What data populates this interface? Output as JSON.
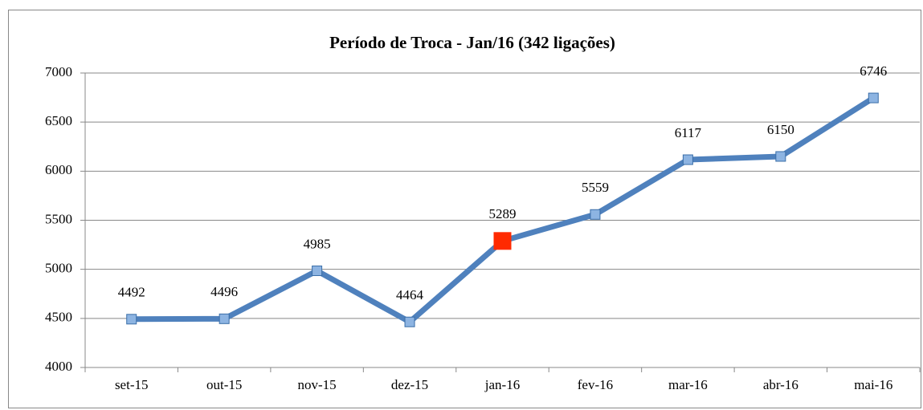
{
  "chart_data": {
    "type": "line",
    "title": "Período de Troca - Jan/16 (342 ligações)",
    "categories": [
      "set-15",
      "out-15",
      "nov-15",
      "dez-15",
      "jan-16",
      "fev-16",
      "mar-16",
      "abr-16",
      "mai-16"
    ],
    "values": [
      4492,
      4496,
      4985,
      4464,
      5289,
      5559,
      6117,
      6150,
      6746
    ],
    "color": "#4f81bd",
    "point_colors": [
      "#8db4e2",
      "#8db4e2",
      "#8db4e2",
      "#8db4e2",
      "#ff2a00",
      "#8db4e2",
      "#8db4e2",
      "#8db4e2",
      "#8db4e2"
    ],
    "ylim": [
      4000,
      7000
    ],
    "yticks": [
      4000,
      4500,
      5000,
      5500,
      6000,
      6500,
      7000
    ],
    "grid": true
  }
}
